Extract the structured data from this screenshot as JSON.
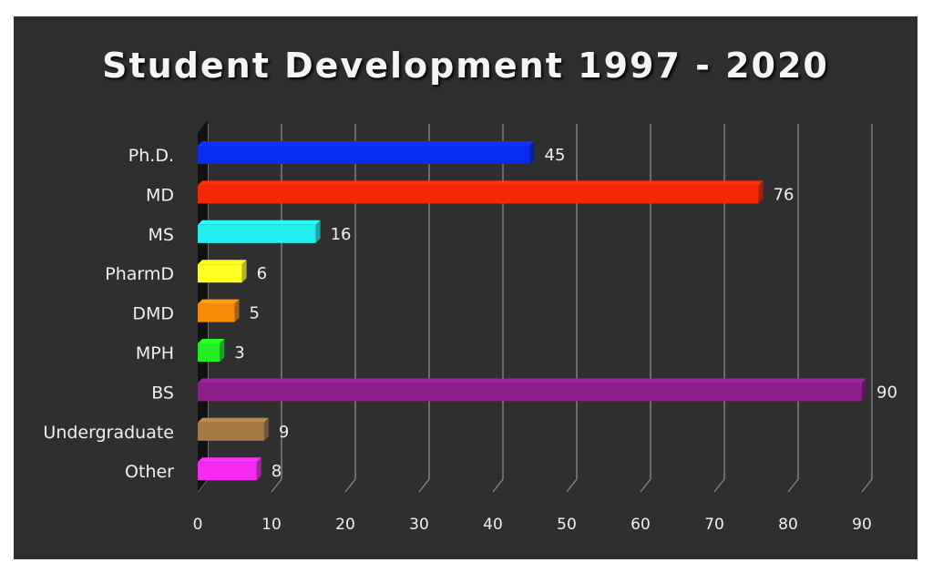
{
  "chart_data": {
    "type": "bar",
    "orientation": "horizontal",
    "title": "Student Development 1997 - 2020",
    "categories": [
      "Ph.D.",
      "MD",
      "MS",
      "PharmD",
      "DMD",
      "MPH",
      "BS",
      "Undergraduate",
      "Other"
    ],
    "values": [
      45,
      76,
      16,
      6,
      5,
      3,
      90,
      9,
      8
    ],
    "colors": [
      "#0a2cf0",
      "#f42a06",
      "#22eef0",
      "#ffff22",
      "#f88a06",
      "#22ee22",
      "#8a1e8a",
      "#a57a46",
      "#f42af0"
    ],
    "xlim": [
      0,
      90
    ],
    "xticks": [
      0,
      10,
      20,
      30,
      40,
      50,
      60,
      70,
      80,
      90
    ],
    "grid": true,
    "data_labels": true,
    "background": "#2f2f2f"
  }
}
